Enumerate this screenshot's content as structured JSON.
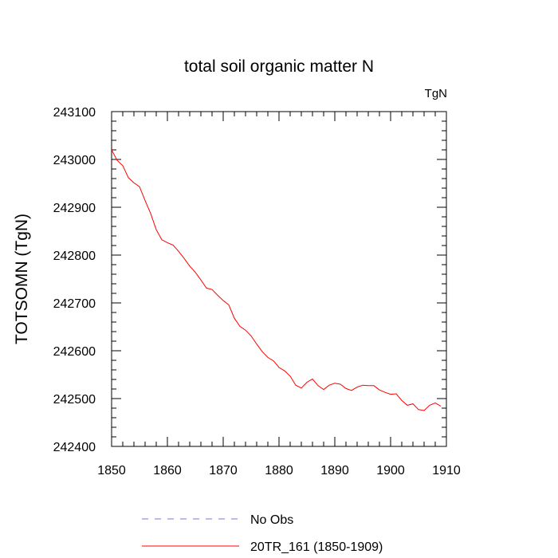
{
  "chart_data": {
    "type": "line",
    "title": "total soil organic matter N",
    "unit_label": "TgN",
    "xlabel": "",
    "ylabel": "TOTSOMN  (TgN)",
    "xlim": [
      1850,
      1910
    ],
    "ylim": [
      242400,
      243100
    ],
    "x_ticks": [
      1850,
      1860,
      1870,
      1880,
      1890,
      1900,
      1910
    ],
    "y_ticks": [
      242400,
      242500,
      242600,
      242700,
      242800,
      242900,
      243000,
      243100
    ],
    "grid": false,
    "legend_position": "bottom",
    "series": [
      {
        "name": "No Obs",
        "color": "#7777dd",
        "style": "dashed",
        "x": [],
        "y": []
      },
      {
        "name": "20TR_161 (1850-1909)",
        "color": "#ff0000",
        "style": "solid",
        "x": [
          1850,
          1851,
          1852,
          1853,
          1854,
          1855,
          1856,
          1857,
          1858,
          1859,
          1860,
          1861,
          1862,
          1863,
          1864,
          1865,
          1866,
          1867,
          1868,
          1869,
          1870,
          1871,
          1872,
          1873,
          1874,
          1875,
          1876,
          1877,
          1878,
          1879,
          1880,
          1881,
          1882,
          1883,
          1884,
          1885,
          1886,
          1887,
          1888,
          1889,
          1890,
          1891,
          1892,
          1893,
          1894,
          1895,
          1896,
          1897,
          1898,
          1899,
          1900,
          1901,
          1902,
          1903,
          1904,
          1905,
          1906,
          1907,
          1908,
          1909
        ],
        "y": [
          243020,
          242998,
          242987,
          242962,
          242951,
          242943,
          242914,
          242887,
          242853,
          242832,
          242826,
          242821,
          242808,
          242793,
          242777,
          242764,
          242748,
          242731,
          242728,
          242716,
          242705,
          242696,
          242668,
          242651,
          242643,
          242631,
          242614,
          242598,
          242586,
          242579,
          242565,
          242558,
          242547,
          242528,
          242522,
          242534,
          242541,
          242527,
          242519,
          242528,
          242532,
          242530,
          242521,
          242517,
          242524,
          242528,
          242527,
          242527,
          242518,
          242513,
          242509,
          242510,
          242496,
          242486,
          242489,
          242477,
          242475,
          242486,
          242491,
          242484
        ]
      }
    ]
  }
}
